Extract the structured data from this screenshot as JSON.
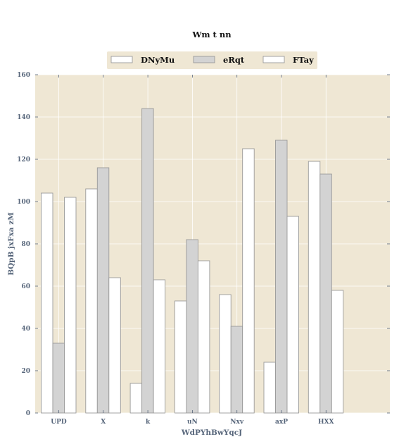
{
  "chart_data": {
    "type": "bar",
    "title": "Wm t nn",
    "xlabel": "WdPYhBwYqcJ",
    "ylabel": "BQpB jxFxa zM",
    "categories": [
      "UPD",
      "X",
      "k",
      "uN",
      "Nxv",
      "axP",
      "HXX"
    ],
    "series": [
      {
        "name": "DNyMu",
        "values": [
          104,
          106,
          14,
          53,
          56,
          24,
          119
        ],
        "color": "#ffffff"
      },
      {
        "name": "eRqt",
        "values": [
          33,
          116,
          144,
          82,
          41,
          129,
          113
        ],
        "color": "#d3d3d3"
      },
      {
        "name": "FTay",
        "values": [
          102,
          64,
          63,
          72,
          125,
          93,
          58
        ],
        "color": "#ffffff"
      }
    ],
    "ylim": [
      0,
      160
    ],
    "yticks": [
      0,
      20,
      40,
      60,
      80,
      100,
      120,
      140,
      160
    ],
    "grid": true,
    "legend_position": "top-center",
    "plot_background": "#efe7d4",
    "grid_color": "#ffffff",
    "bar_edge_color": "#999999",
    "tick_color": "#56657a"
  }
}
